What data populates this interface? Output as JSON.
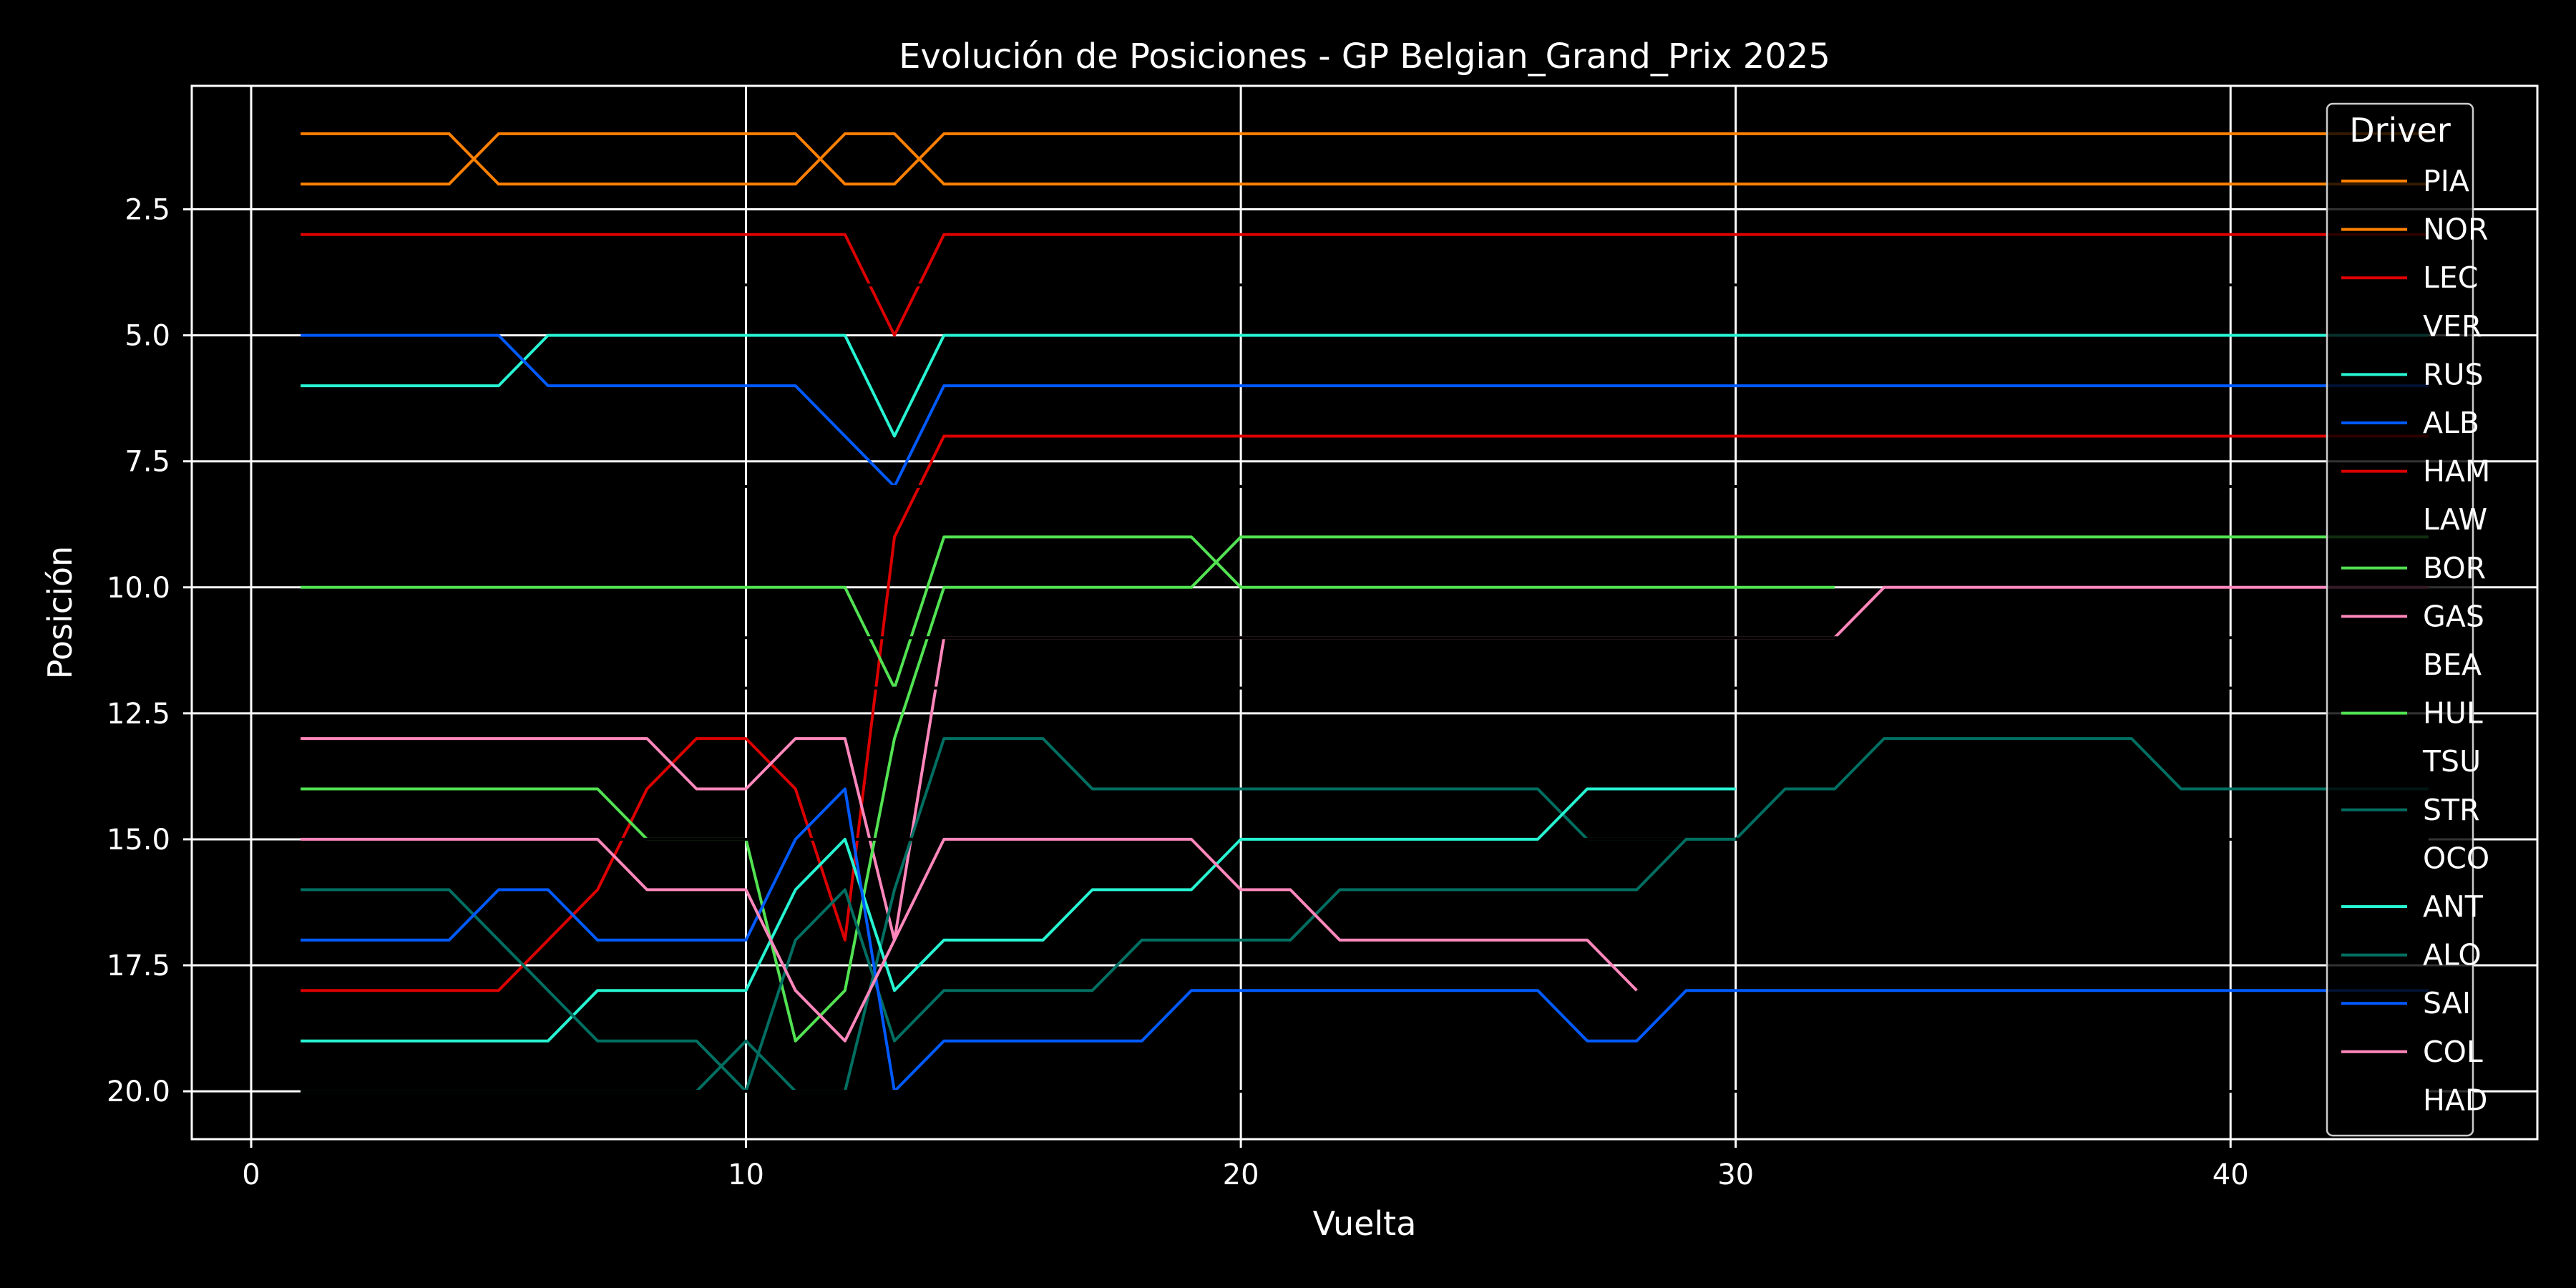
{
  "chart_data": {
    "type": "line",
    "title": "Evolución de Posiciones - GP Belgian_Grand_Prix 2025",
    "xlabel": "Vuelta",
    "ylabel": "Posición",
    "xlim": [
      -1.2,
      46.2
    ],
    "ylim": [
      20.95,
      0.05
    ],
    "y_inverted": true,
    "xticks": [
      0,
      10,
      20,
      30,
      40
    ],
    "yticks": [
      2.5,
      5.0,
      7.5,
      10.0,
      12.5,
      15.0,
      17.5,
      20.0
    ],
    "xtick_labels": [
      "0",
      "10",
      "20",
      "30",
      "40"
    ],
    "ytick_labels": [
      "2.5",
      "5.0",
      "7.5",
      "10.0",
      "12.5",
      "15.0",
      "17.5",
      "20.0"
    ],
    "grid": true,
    "legend_title": "Driver",
    "legend_position": "top-right",
    "series": [
      {
        "name": "PIA",
        "color": "#FF8000",
        "points": [
          [
            1,
            1
          ],
          [
            4,
            1
          ],
          [
            5,
            2
          ],
          [
            11,
            2
          ],
          [
            12,
            1
          ],
          [
            13,
            1
          ],
          [
            14,
            2
          ],
          [
            44,
            2
          ]
        ]
      },
      {
        "name": "NOR",
        "color": "#FF8000",
        "points": [
          [
            1,
            2
          ],
          [
            4,
            2
          ],
          [
            5,
            1
          ],
          [
            11,
            1
          ],
          [
            12,
            2
          ],
          [
            13,
            2
          ],
          [
            14,
            1
          ],
          [
            44,
            1
          ]
        ]
      },
      {
        "name": "LEC",
        "color": "#DC0000",
        "points": [
          [
            1,
            3
          ],
          [
            12,
            3
          ],
          [
            13,
            5
          ],
          [
            14,
            3
          ],
          [
            44,
            3
          ]
        ]
      },
      {
        "name": "VER",
        "color": "#000000",
        "points": [
          [
            1,
            4
          ],
          [
            44,
            4
          ]
        ]
      },
      {
        "name": "RUS",
        "color": "#27F4D2",
        "points": [
          [
            1,
            6
          ],
          [
            5,
            6
          ],
          [
            6,
            5
          ],
          [
            12,
            5
          ],
          [
            13,
            7
          ],
          [
            14,
            5
          ],
          [
            44,
            5
          ]
        ]
      },
      {
        "name": "ALB",
        "color": "#005AFF",
        "points": [
          [
            1,
            5
          ],
          [
            5,
            5
          ],
          [
            6,
            6
          ],
          [
            11,
            6
          ],
          [
            13,
            8
          ],
          [
            14,
            6
          ],
          [
            44,
            6
          ]
        ]
      },
      {
        "name": "HAM",
        "color": "#DC0000",
        "points": [
          [
            1,
            18
          ],
          [
            5,
            18
          ],
          [
            7,
            16
          ],
          [
            8,
            14
          ],
          [
            9,
            13
          ],
          [
            10,
            13
          ],
          [
            11,
            14
          ],
          [
            12,
            17
          ],
          [
            13,
            9
          ],
          [
            14,
            7
          ],
          [
            44,
            7
          ]
        ]
      },
      {
        "name": "LAW",
        "color": "#000000",
        "points": [
          [
            1,
            8
          ],
          [
            44,
            8
          ]
        ]
      },
      {
        "name": "BOR",
        "color": "#52E252",
        "points": [
          [
            1,
            10
          ],
          [
            12,
            10
          ],
          [
            13,
            12
          ],
          [
            14,
            9
          ],
          [
            19,
            9
          ],
          [
            20,
            10
          ],
          [
            32,
            10
          ]
        ]
      },
      {
        "name": "GAS",
        "color": "#FF87BC",
        "points": [
          [
            1,
            13
          ],
          [
            8,
            13
          ],
          [
            9,
            14
          ],
          [
            10,
            14
          ],
          [
            11,
            13
          ],
          [
            12,
            13
          ],
          [
            13,
            17
          ],
          [
            14,
            11
          ],
          [
            32,
            11
          ],
          [
            33,
            10
          ],
          [
            44,
            10
          ]
        ]
      },
      {
        "name": "BEA",
        "color": "#000000",
        "points": [
          [
            1,
            12
          ],
          [
            44,
            12
          ]
        ]
      },
      {
        "name": "HUL",
        "color": "#52E252",
        "points": [
          [
            1,
            14
          ],
          [
            7,
            14
          ],
          [
            8,
            15
          ],
          [
            10,
            15
          ],
          [
            11,
            19
          ],
          [
            12,
            18
          ],
          [
            13,
            13
          ],
          [
            14,
            10
          ],
          [
            19,
            10
          ],
          [
            20,
            9
          ],
          [
            44,
            9
          ]
        ]
      },
      {
        "name": "TSU",
        "color": "#000000",
        "points": [
          [
            1,
            11
          ],
          [
            44,
            11
          ]
        ]
      },
      {
        "name": "STR",
        "color": "#006F62",
        "points": [
          [
            1,
            20
          ],
          [
            9,
            20
          ],
          [
            10,
            19
          ],
          [
            11,
            20
          ],
          [
            12,
            20
          ],
          [
            13,
            16
          ],
          [
            14,
            13
          ],
          [
            16,
            13
          ],
          [
            17,
            14
          ],
          [
            26,
            14
          ],
          [
            27,
            15
          ],
          [
            29,
            15
          ],
          [
            30,
            15
          ],
          [
            31,
            14
          ],
          [
            32,
            14
          ],
          [
            33,
            13
          ],
          [
            38,
            13
          ],
          [
            39,
            14
          ],
          [
            44,
            14
          ]
        ]
      },
      {
        "name": "OCO",
        "color": "#000000",
        "points": [
          [
            1,
            15
          ],
          [
            44,
            15
          ]
        ]
      },
      {
        "name": "ANT",
        "color": "#27F4D2",
        "points": [
          [
            1,
            19
          ],
          [
            6,
            19
          ],
          [
            7,
            18
          ],
          [
            10,
            18
          ],
          [
            11,
            16
          ],
          [
            12,
            15
          ],
          [
            13,
            18
          ],
          [
            14,
            17
          ],
          [
            16,
            17
          ],
          [
            17,
            16
          ],
          [
            19,
            16
          ],
          [
            20,
            15
          ],
          [
            26,
            15
          ],
          [
            27,
            14
          ],
          [
            30,
            14
          ]
        ]
      },
      {
        "name": "ALO",
        "color": "#006F62",
        "points": [
          [
            1,
            16
          ],
          [
            4,
            16
          ],
          [
            5,
            17
          ],
          [
            7,
            19
          ],
          [
            9,
            19
          ],
          [
            10,
            20
          ],
          [
            11,
            17
          ],
          [
            12,
            16
          ],
          [
            13,
            19
          ],
          [
            14,
            18
          ],
          [
            17,
            18
          ],
          [
            18,
            17
          ],
          [
            21,
            17
          ],
          [
            22,
            16
          ],
          [
            28,
            16
          ],
          [
            29,
            15
          ],
          [
            30,
            15
          ]
        ]
      },
      {
        "name": "SAI",
        "color": "#005AFF",
        "points": [
          [
            1,
            17
          ],
          [
            4,
            17
          ],
          [
            5,
            16
          ],
          [
            6,
            16
          ],
          [
            7,
            17
          ],
          [
            10,
            17
          ],
          [
            11,
            15
          ],
          [
            12,
            14
          ],
          [
            13,
            20
          ],
          [
            14,
            19
          ],
          [
            18,
            19
          ],
          [
            19,
            18
          ],
          [
            26,
            18
          ],
          [
            27,
            19
          ],
          [
            28,
            19
          ],
          [
            29,
            18
          ],
          [
            44,
            18
          ]
        ]
      },
      {
        "name": "COL",
        "color": "#FF87BC",
        "points": [
          [
            1,
            15
          ],
          [
            7,
            15
          ],
          [
            8,
            16
          ],
          [
            10,
            16
          ],
          [
            11,
            18
          ],
          [
            12,
            19
          ],
          [
            13,
            17
          ],
          [
            14,
            15
          ],
          [
            19,
            15
          ],
          [
            20,
            16
          ],
          [
            21,
            16
          ],
          [
            22,
            17
          ],
          [
            27,
            17
          ],
          [
            28,
            18
          ]
        ]
      },
      {
        "name": "HAD",
        "color": "#000000",
        "points": [
          [
            1,
            20
          ],
          [
            44,
            20
          ]
        ]
      }
    ]
  }
}
